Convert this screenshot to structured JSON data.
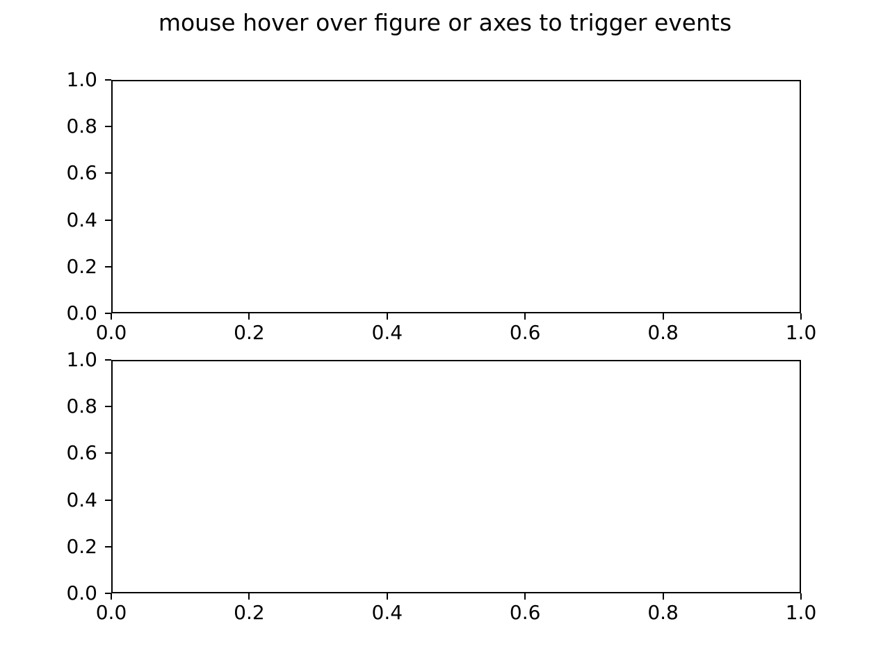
{
  "figure": {
    "title": "mouse hover over figure or axes to trigger events",
    "background_color": "#ffffff",
    "text_color": "#000000",
    "spine_color": "#000000"
  },
  "chart_data": [
    {
      "type": "line",
      "title": "",
      "xlabel": "",
      "ylabel": "",
      "series": [],
      "xlim": [
        0.0,
        1.0
      ],
      "ylim": [
        0.0,
        1.0
      ],
      "x_ticks": [
        0.0,
        0.2,
        0.4,
        0.6,
        0.8,
        1.0
      ],
      "x_tick_labels": [
        "0.0",
        "0.2",
        "0.4",
        "0.6",
        "0.8",
        "1.0"
      ],
      "y_ticks": [
        0.0,
        0.2,
        0.4,
        0.6,
        0.8,
        1.0
      ],
      "y_tick_labels": [
        "0.0",
        "0.2",
        "0.4",
        "0.6",
        "0.8",
        "1.0"
      ],
      "grid": false,
      "legend": null
    },
    {
      "type": "line",
      "title": "",
      "xlabel": "",
      "ylabel": "",
      "series": [],
      "xlim": [
        0.0,
        1.0
      ],
      "ylim": [
        0.0,
        1.0
      ],
      "x_ticks": [
        0.0,
        0.2,
        0.4,
        0.6,
        0.8,
        1.0
      ],
      "x_tick_labels": [
        "0.0",
        "0.2",
        "0.4",
        "0.6",
        "0.8",
        "1.0"
      ],
      "y_ticks": [
        0.0,
        0.2,
        0.4,
        0.6,
        0.8,
        1.0
      ],
      "y_tick_labels": [
        "0.0",
        "0.2",
        "0.4",
        "0.6",
        "0.8",
        "1.0"
      ],
      "grid": false,
      "legend": null
    }
  ]
}
